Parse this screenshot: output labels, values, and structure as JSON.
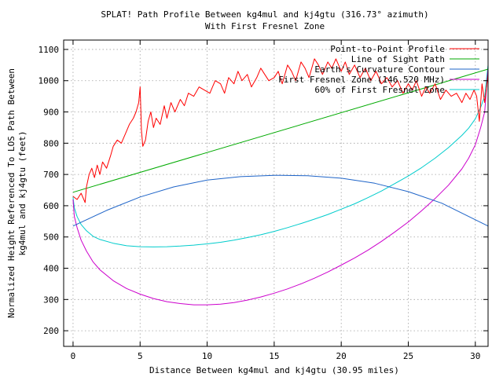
{
  "chart_data": {
    "type": "line",
    "title": "SPLAT! Path Profile Between kg4mul and kj4gtu (316.73° azimuth)",
    "subtitle": "With First Fresnel Zone",
    "xlabel": "Distance Between kg4mul and kj4gtu (30.95 miles)",
    "ylabel_line1": "Normalized Height Referenced To LOS Path Between",
    "ylabel_line2": "kg4mul and kj4gtu (feet)",
    "xlim": [
      -0.7,
      30.95
    ],
    "ylim": [
      150,
      1130
    ],
    "x_ticks": [
      0,
      5,
      10,
      15,
      20,
      25,
      30
    ],
    "y_ticks": [
      200,
      300,
      400,
      500,
      600,
      700,
      800,
      900,
      1000,
      1100
    ],
    "grid": true,
    "legend_position": "top-right",
    "series": [
      {
        "name": "Point-to-Point Profile",
        "color": "#ff0000",
        "x": [
          0,
          0.3,
          0.6,
          0.9,
          1.0,
          1.2,
          1.4,
          1.6,
          1.8,
          2.0,
          2.2,
          2.5,
          2.8,
          3.0,
          3.3,
          3.6,
          3.9,
          4.2,
          4.5,
          4.7,
          4.9,
          5.0,
          5.1,
          5.2,
          5.4,
          5.6,
          5.8,
          6.0,
          6.2,
          6.5,
          6.8,
          7.0,
          7.3,
          7.6,
          8.0,
          8.3,
          8.6,
          9.0,
          9.4,
          9.8,
          10.2,
          10.6,
          11.0,
          11.3,
          11.6,
          12.0,
          12.3,
          12.6,
          13.0,
          13.3,
          13.7,
          14.0,
          14.3,
          14.6,
          15.0,
          15.3,
          15.6,
          16.0,
          16.3,
          16.6,
          17.0,
          17.3,
          17.6,
          18.0,
          18.3,
          18.6,
          19.0,
          19.3,
          19.6,
          20.0,
          20.3,
          20.6,
          21.0,
          21.4,
          21.8,
          22.2,
          22.6,
          23.0,
          23.4,
          23.8,
          24.2,
          24.6,
          25.0,
          25.3,
          25.6,
          26.0,
          26.3,
          26.6,
          27.0,
          27.4,
          27.8,
          28.2,
          28.6,
          29.0,
          29.3,
          29.6,
          29.9,
          30.1,
          30.3,
          30.5,
          30.7,
          30.95
        ],
        "values": [
          630,
          620,
          640,
          610,
          660,
          700,
          720,
          690,
          730,
          700,
          740,
          720,
          760,
          790,
          810,
          800,
          830,
          860,
          880,
          900,
          930,
          980,
          840,
          790,
          810,
          870,
          900,
          850,
          880,
          860,
          920,
          880,
          930,
          900,
          940,
          920,
          960,
          950,
          980,
          970,
          960,
          1000,
          990,
          960,
          1010,
          990,
          1030,
          1000,
          1020,
          980,
          1010,
          1040,
          1020,
          1000,
          1010,
          1030,
          990,
          1050,
          1030,
          1000,
          1060,
          1040,
          1010,
          1070,
          1050,
          1020,
          1060,
          1040,
          1070,
          1030,
          1060,
          1020,
          1050,
          1010,
          1040,
          1000,
          1030,
          990,
          1010,
          980,
          1000,
          960,
          990,
          970,
          1000,
          950,
          980,
          960,
          990,
          940,
          970,
          950,
          960,
          930,
          960,
          940,
          970,
          950,
          870,
          990,
          930,
          1020
        ]
      },
      {
        "name": "Line of Sight Path",
        "color": "#00aa00",
        "x": [
          0,
          30.95
        ],
        "values": [
          643,
          1037
        ]
      },
      {
        "name": "Earth's Curvature Contour",
        "color": "#1e64c8",
        "x": [
          0,
          2.5,
          5,
          7.5,
          10,
          12.5,
          15,
          15.5,
          17.5,
          20,
          22.5,
          25,
          27.5,
          30.95
        ],
        "values": [
          535,
          585,
          628,
          660,
          682,
          693,
          697,
          697,
          696,
          688,
          672,
          645,
          608,
          535
        ]
      },
      {
        "name": "First Fresnel Zone (146.520 MHz)",
        "color": "#cc00cc",
        "x": [
          0,
          0.1,
          0.3,
          0.6,
          1.0,
          1.5,
          2.0,
          3.0,
          4.0,
          5.0,
          6.0,
          7.0,
          8.0,
          9.0,
          10.0,
          11.0,
          12.0,
          13.0,
          14.0,
          15.0,
          16.0,
          17.0,
          18.0,
          19.0,
          20.0,
          21.0,
          22.0,
          23.0,
          24.0,
          25.0,
          26.0,
          27.0,
          28.0,
          29.0,
          29.5,
          30.0,
          30.4,
          30.7,
          30.95
        ],
        "values": [
          620,
          565,
          530,
          490,
          455,
          420,
          395,
          360,
          335,
          317,
          303,
          293,
          287,
          283,
          283,
          285,
          290,
          298,
          308,
          320,
          334,
          350,
          368,
          388,
          410,
          433,
          458,
          486,
          516,
          548,
          584,
          623,
          666,
          718,
          752,
          795,
          850,
          900,
          1040
        ]
      },
      {
        "name": "60% of First Fresnel Zone",
        "color": "#00cccc",
        "x": [
          0,
          0.1,
          0.3,
          0.6,
          1.0,
          1.5,
          2.0,
          3.0,
          4.0,
          5.0,
          6.0,
          7.0,
          8.0,
          9.0,
          10.0,
          11.0,
          12.0,
          13.0,
          14.0,
          15.0,
          16.0,
          17.0,
          18.0,
          19.0,
          20.0,
          21.0,
          22.0,
          23.0,
          24.0,
          25.0,
          26.0,
          27.0,
          28.0,
          29.0,
          29.5,
          30.0,
          30.4,
          30.7,
          30.95
        ],
        "values": [
          628,
          593,
          565,
          540,
          520,
          502,
          492,
          480,
          472,
          469,
          468,
          469,
          471,
          474,
          478,
          483,
          490,
          498,
          507,
          518,
          530,
          543,
          557,
          572,
          589,
          606,
          626,
          647,
          671,
          695,
          722,
          752,
          786,
          825,
          848,
          878,
          915,
          950,
          1050
        ]
      }
    ]
  }
}
